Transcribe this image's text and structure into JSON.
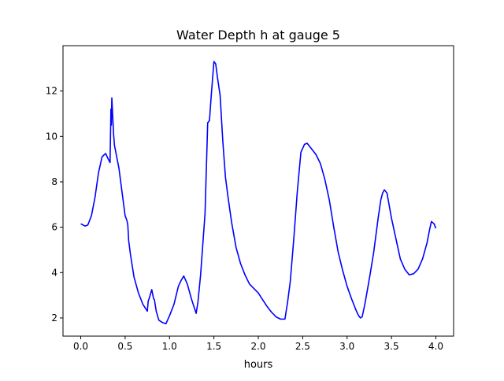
{
  "chart_data": {
    "type": "line",
    "title": "Water Depth h at gauge 5",
    "xlabel": "hours",
    "ylabel": "",
    "xlim": [
      -0.2,
      4.2
    ],
    "ylim": [
      1.2,
      14.0
    ],
    "xticks": [
      0.0,
      0.5,
      1.0,
      1.5,
      2.0,
      2.5,
      3.0,
      3.5,
      4.0
    ],
    "xtick_labels": [
      "0.0",
      "0.5",
      "1.0",
      "1.5",
      "2.0",
      "2.5",
      "3.0",
      "3.5",
      "4.0"
    ],
    "yticks": [
      2,
      4,
      6,
      8,
      10,
      12
    ],
    "ytick_labels": [
      "2",
      "4",
      "6",
      "8",
      "10",
      "12"
    ],
    "grid": false,
    "legend": "none",
    "series": [
      {
        "color": "#0000ff",
        "x": [
          0.0,
          0.05,
          0.08,
          0.12,
          0.16,
          0.2,
          0.24,
          0.28,
          0.31,
          0.33,
          0.34,
          0.345,
          0.35,
          0.36,
          0.37,
          0.38,
          0.4,
          0.43,
          0.46,
          0.5,
          0.52,
          0.53,
          0.54,
          0.56,
          0.6,
          0.65,
          0.7,
          0.75,
          0.76,
          0.77,
          0.8,
          0.82,
          0.83,
          0.85,
          0.88,
          0.92,
          0.96,
          1.0,
          1.02,
          1.05,
          1.1,
          1.13,
          1.16,
          1.2,
          1.25,
          1.3,
          1.32,
          1.35,
          1.4,
          1.43,
          1.45,
          1.47,
          1.5,
          1.52,
          1.54,
          1.57,
          1.6,
          1.63,
          1.66,
          1.7,
          1.75,
          1.8,
          1.85,
          1.9,
          1.95,
          2.0,
          2.05,
          2.1,
          2.15,
          2.2,
          2.25,
          2.3,
          2.33,
          2.36,
          2.4,
          2.44,
          2.48,
          2.52,
          2.55,
          2.58,
          2.6,
          2.65,
          2.7,
          2.75,
          2.8,
          2.85,
          2.9,
          2.95,
          3.0,
          3.05,
          3.1,
          3.13,
          3.15,
          3.17,
          3.2,
          3.25,
          3.3,
          3.35,
          3.38,
          3.4,
          3.42,
          3.45,
          3.5,
          3.55,
          3.6,
          3.65,
          3.7,
          3.75,
          3.8,
          3.85,
          3.9,
          3.93,
          3.95,
          3.98,
          4.0
        ],
        "values": [
          6.15,
          6.05,
          6.1,
          6.5,
          7.3,
          8.4,
          9.1,
          9.25,
          9.0,
          8.85,
          11.2,
          10.5,
          11.7,
          10.9,
          10.1,
          9.6,
          9.2,
          8.6,
          7.7,
          6.5,
          6.3,
          6.1,
          5.4,
          4.8,
          3.8,
          3.1,
          2.6,
          2.3,
          2.75,
          2.85,
          3.25,
          2.85,
          2.8,
          2.3,
          1.9,
          1.8,
          1.75,
          2.1,
          2.3,
          2.6,
          3.4,
          3.65,
          3.85,
          3.5,
          2.8,
          2.2,
          2.7,
          3.9,
          6.6,
          10.6,
          10.7,
          11.8,
          13.3,
          13.2,
          12.6,
          11.8,
          9.8,
          8.2,
          7.3,
          6.2,
          5.1,
          4.4,
          3.9,
          3.5,
          3.3,
          3.1,
          2.8,
          2.5,
          2.25,
          2.05,
          1.95,
          1.95,
          2.7,
          3.6,
          5.5,
          7.6,
          9.3,
          9.65,
          9.7,
          9.55,
          9.45,
          9.2,
          8.8,
          8.1,
          7.2,
          6.0,
          4.9,
          4.1,
          3.4,
          2.85,
          2.35,
          2.1,
          2.0,
          2.05,
          2.6,
          3.7,
          4.9,
          6.4,
          7.2,
          7.5,
          7.65,
          7.5,
          6.4,
          5.5,
          4.6,
          4.15,
          3.9,
          3.95,
          4.15,
          4.6,
          5.3,
          5.9,
          6.25,
          6.15,
          5.95
        ]
      }
    ]
  }
}
